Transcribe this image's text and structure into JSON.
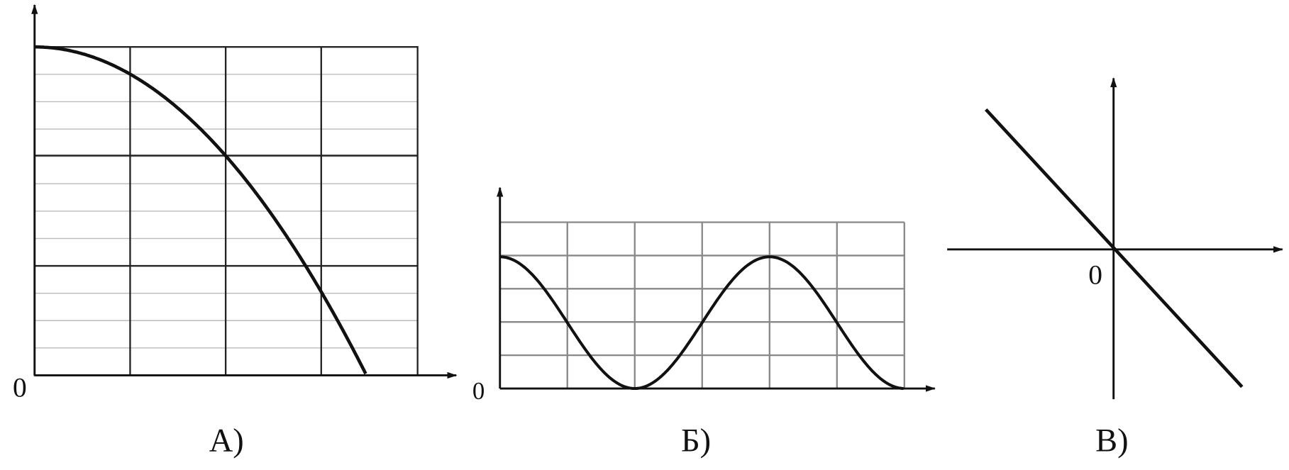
{
  "panels": [
    {
      "origin": "0",
      "caption": "А)"
    },
    {
      "origin": "0",
      "caption": "Б)"
    },
    {
      "origin": "0",
      "caption": "В)"
    }
  ]
}
